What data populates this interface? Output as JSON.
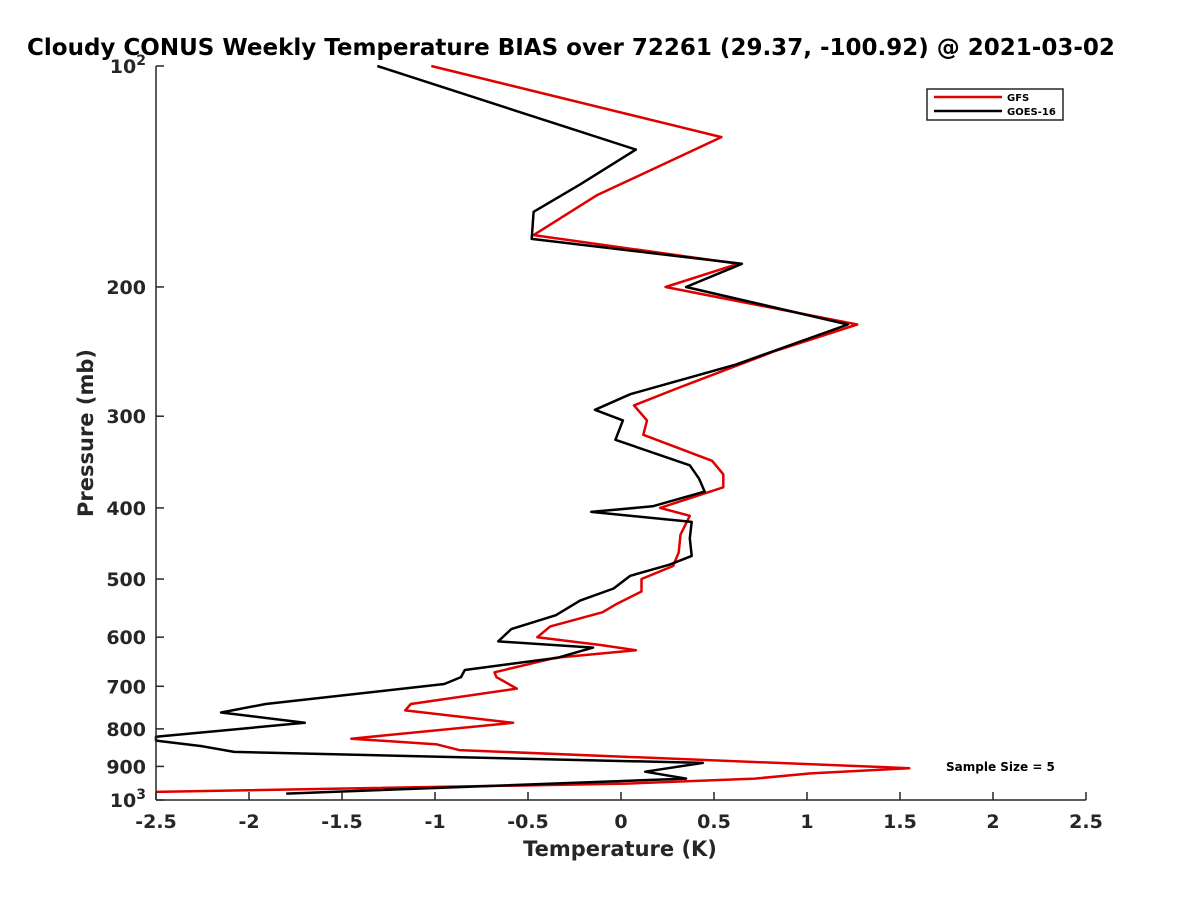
{
  "chart_data": {
    "type": "line",
    "title": "Cloudy CONUS Weekly Temperature BIAS over 72261 (29.37, -100.92) @ 2021-03-02",
    "xlabel": "Temperature (K)",
    "ylabel": "Pressure (mb)",
    "xlim": [
      -2.5,
      2.5
    ],
    "ylim": [
      100,
      1000
    ],
    "y_scale": "log",
    "y_reversed": true,
    "grid": false,
    "legend_position": "top-right",
    "x_ticks": [
      "-2.5",
      "-2",
      "-1.5",
      "-1",
      "-0.5",
      "0",
      "0.5",
      "1",
      "1.5",
      "2",
      "2.5"
    ],
    "y_ticks": [
      {
        "value": 100,
        "base": "10",
        "exp": "2"
      },
      {
        "value": 200,
        "label": "200"
      },
      {
        "value": 300,
        "label": "300"
      },
      {
        "value": 400,
        "label": "400"
      },
      {
        "value": 500,
        "label": "500"
      },
      {
        "value": 600,
        "label": "600"
      },
      {
        "value": 700,
        "label": "700"
      },
      {
        "value": 800,
        "label": "800"
      },
      {
        "value": 900,
        "label": "900"
      },
      {
        "value": 1000,
        "base": "10",
        "exp": "3"
      }
    ],
    "annotation": "Sample Size = 5",
    "series": [
      {
        "name": "GFS",
        "color": "#e00000",
        "points": [
          [
            -1.02,
            100
          ],
          [
            0.54,
            125
          ],
          [
            -0.13,
            150
          ],
          [
            -0.47,
            170
          ],
          [
            0.63,
            186
          ],
          [
            0.24,
            200
          ],
          [
            1.27,
            225
          ],
          [
            0.82,
            245
          ],
          [
            0.3,
            275
          ],
          [
            0.07,
            290
          ],
          [
            0.14,
            304
          ],
          [
            0.12,
            318
          ],
          [
            0.49,
            345
          ],
          [
            0.55,
            360
          ],
          [
            0.55,
            375
          ],
          [
            0.21,
            400
          ],
          [
            0.37,
            410
          ],
          [
            0.32,
            435
          ],
          [
            0.31,
            460
          ],
          [
            0.28,
            480
          ],
          [
            0.11,
            500
          ],
          [
            0.11,
            520
          ],
          [
            -0.02,
            540
          ],
          [
            -0.1,
            555
          ],
          [
            -0.38,
            580
          ],
          [
            -0.45,
            600
          ],
          [
            -0.11,
            615
          ],
          [
            0.08,
            625
          ],
          [
            -0.35,
            640
          ],
          [
            -0.68,
            670
          ],
          [
            -0.67,
            680
          ],
          [
            -0.56,
            705
          ],
          [
            -1.13,
            740
          ],
          [
            -1.16,
            755
          ],
          [
            -0.58,
            785
          ],
          [
            -1.45,
            825
          ],
          [
            -0.99,
            840
          ],
          [
            -0.87,
            855
          ],
          [
            1.55,
            905
          ],
          [
            1.02,
            920
          ],
          [
            0.72,
            935
          ],
          [
            0.03,
            950
          ],
          [
            -2.5,
            975
          ]
        ]
      },
      {
        "name": "GOES-16",
        "color": "#000000",
        "points": [
          [
            -1.31,
            100
          ],
          [
            0.08,
            130
          ],
          [
            -0.22,
            145
          ],
          [
            -0.47,
            158
          ],
          [
            -0.48,
            172
          ],
          [
            0.65,
            186
          ],
          [
            0.35,
            200
          ],
          [
            1.22,
            225
          ],
          [
            0.62,
            255
          ],
          [
            0.05,
            280
          ],
          [
            -0.14,
            294
          ],
          [
            0.01,
            304
          ],
          [
            -0.03,
            323
          ],
          [
            0.37,
            350
          ],
          [
            0.42,
            365
          ],
          [
            0.45,
            380
          ],
          [
            0.17,
            398
          ],
          [
            -0.16,
            405
          ],
          [
            0.38,
            418
          ],
          [
            0.37,
            440
          ],
          [
            0.38,
            465
          ],
          [
            0.26,
            478
          ],
          [
            0.05,
            495
          ],
          [
            -0.04,
            515
          ],
          [
            -0.22,
            535
          ],
          [
            -0.35,
            560
          ],
          [
            -0.59,
            585
          ],
          [
            -0.66,
            608
          ],
          [
            -0.15,
            620
          ],
          [
            -0.34,
            640
          ],
          [
            -0.84,
            665
          ],
          [
            -0.86,
            680
          ],
          [
            -0.95,
            695
          ],
          [
            -1.91,
            740
          ],
          [
            -2.15,
            760
          ],
          [
            -1.7,
            785
          ],
          [
            -2.5,
            820
          ],
          [
            -2.5,
            830
          ],
          [
            -2.25,
            845
          ],
          [
            -2.08,
            860
          ],
          [
            0.44,
            890
          ],
          [
            0.13,
            915
          ],
          [
            0.35,
            935
          ],
          [
            -1.8,
            980
          ]
        ]
      }
    ]
  }
}
